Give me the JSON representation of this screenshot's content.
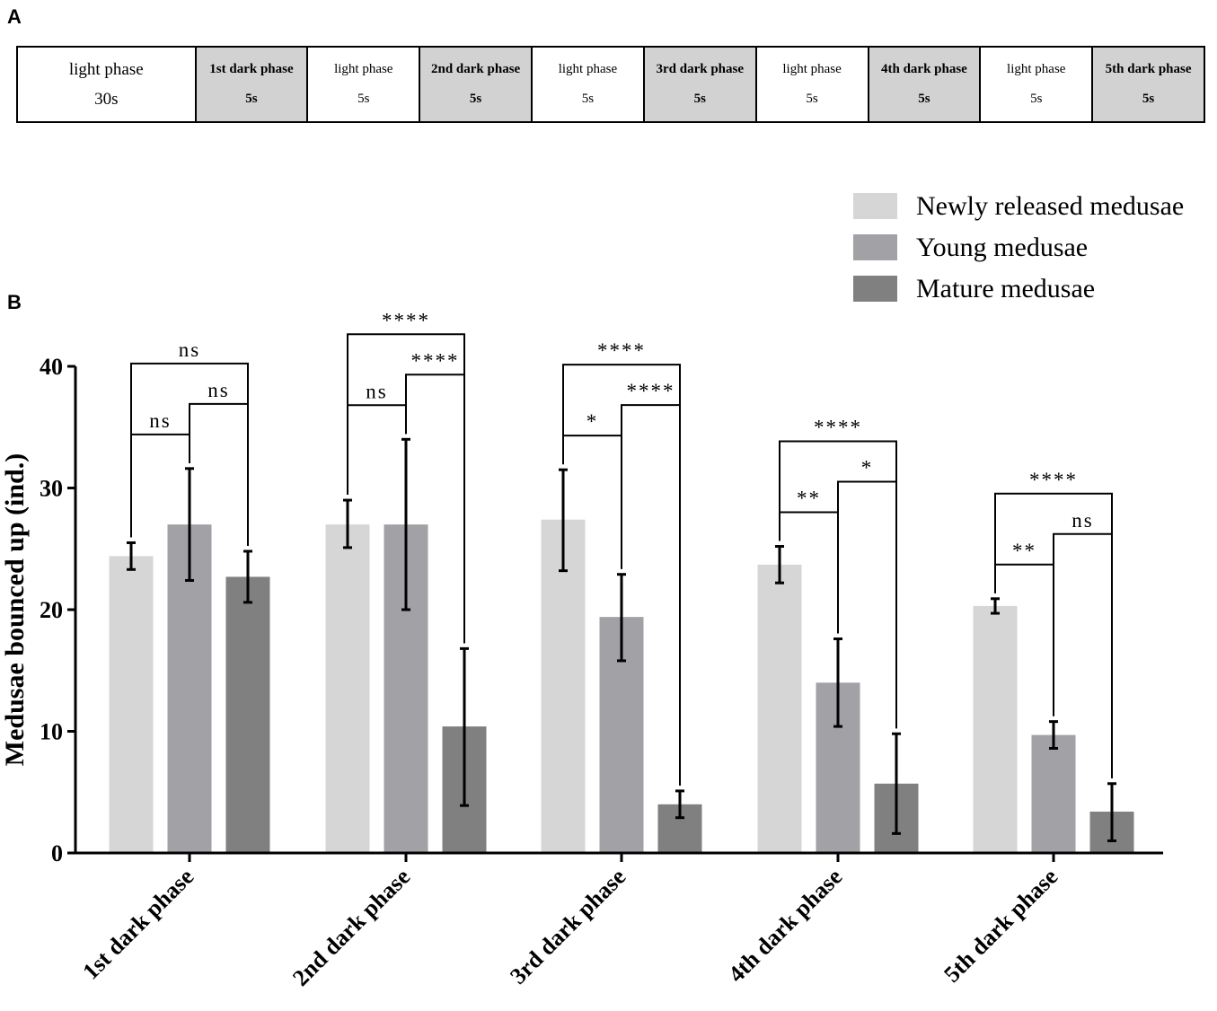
{
  "panel_labels": {
    "a": "A",
    "b": "B"
  },
  "timeline": [
    {
      "name": "light phase",
      "duration": "30s",
      "dark": false
    },
    {
      "name": "1st dark phase",
      "duration": "5s",
      "dark": true
    },
    {
      "name": "light phase",
      "duration": "5s",
      "dark": false
    },
    {
      "name": "2nd dark phase",
      "duration": "5s",
      "dark": true
    },
    {
      "name": "light phase",
      "duration": "5s",
      "dark": false
    },
    {
      "name": "3rd dark phase",
      "duration": "5s",
      "dark": true
    },
    {
      "name": "light phase",
      "duration": "5s",
      "dark": false
    },
    {
      "name": "4th dark phase",
      "duration": "5s",
      "dark": true
    },
    {
      "name": "light phase",
      "duration": "5s",
      "dark": false
    },
    {
      "name": "5th dark phase",
      "duration": "5s",
      "dark": true
    }
  ],
  "chart_data": {
    "type": "bar",
    "title": "",
    "xlabel": "",
    "ylabel": "Medusae bounced up (ind.)",
    "ylim": [
      0,
      40
    ],
    "yticks": [
      0,
      10,
      20,
      30,
      40
    ],
    "categories": [
      "1st dark phase",
      "2nd dark phase",
      "3rd dark phase",
      "4th dark phase",
      "5th dark phase"
    ],
    "series": [
      {
        "name": "Newly released medusae",
        "color": "#d6d6d6",
        "values": [
          24.4,
          27.0,
          27.4,
          23.7,
          20.3
        ],
        "err_low": [
          23.3,
          25.1,
          23.2,
          22.2,
          19.7
        ],
        "err_high": [
          25.5,
          29.0,
          31.5,
          25.2,
          20.9
        ]
      },
      {
        "name": "Young medusae",
        "color": "#a2a2a6",
        "values": [
          27.0,
          27.0,
          19.4,
          14.0,
          9.7
        ],
        "err_low": [
          22.4,
          20.0,
          15.8,
          10.4,
          8.6
        ],
        "err_high": [
          31.6,
          34.0,
          22.9,
          17.6,
          10.8
        ]
      },
      {
        "name": "Mature medusae",
        "color": "#808080",
        "values": [
          22.7,
          10.4,
          4.0,
          5.7,
          3.4
        ],
        "err_low": [
          20.6,
          3.9,
          2.9,
          1.6,
          1.0
        ],
        "err_high": [
          24.8,
          16.8,
          5.1,
          9.8,
          5.7
        ]
      }
    ],
    "legend_position": "top-right",
    "significance": [
      [
        {
          "pair": [
            0,
            1
          ],
          "label": "ns",
          "level": 0
        },
        {
          "pair": [
            1,
            2
          ],
          "label": "ns",
          "level": 1
        },
        {
          "pair": [
            0,
            2
          ],
          "label": "ns",
          "level": 2
        }
      ],
      [
        {
          "pair": [
            0,
            1
          ],
          "label": "ns",
          "level": 0
        },
        {
          "pair": [
            1,
            2
          ],
          "label": "****",
          "level": 1
        },
        {
          "pair": [
            0,
            2
          ],
          "label": "****",
          "level": 2
        }
      ],
      [
        {
          "pair": [
            0,
            1
          ],
          "label": "*",
          "level": 0
        },
        {
          "pair": [
            1,
            2
          ],
          "label": "****",
          "level": 1
        },
        {
          "pair": [
            0,
            2
          ],
          "label": "****",
          "level": 2
        }
      ],
      [
        {
          "pair": [
            0,
            1
          ],
          "label": "**",
          "level": 0
        },
        {
          "pair": [
            1,
            2
          ],
          "label": "*",
          "level": 1
        },
        {
          "pair": [
            0,
            2
          ],
          "label": "****",
          "level": 2
        }
      ],
      [
        {
          "pair": [
            0,
            1
          ],
          "label": "**",
          "level": 0
        },
        {
          "pair": [
            1,
            2
          ],
          "label": "ns",
          "level": 1
        },
        {
          "pair": [
            0,
            2
          ],
          "label": "****",
          "level": 2
        }
      ]
    ]
  }
}
